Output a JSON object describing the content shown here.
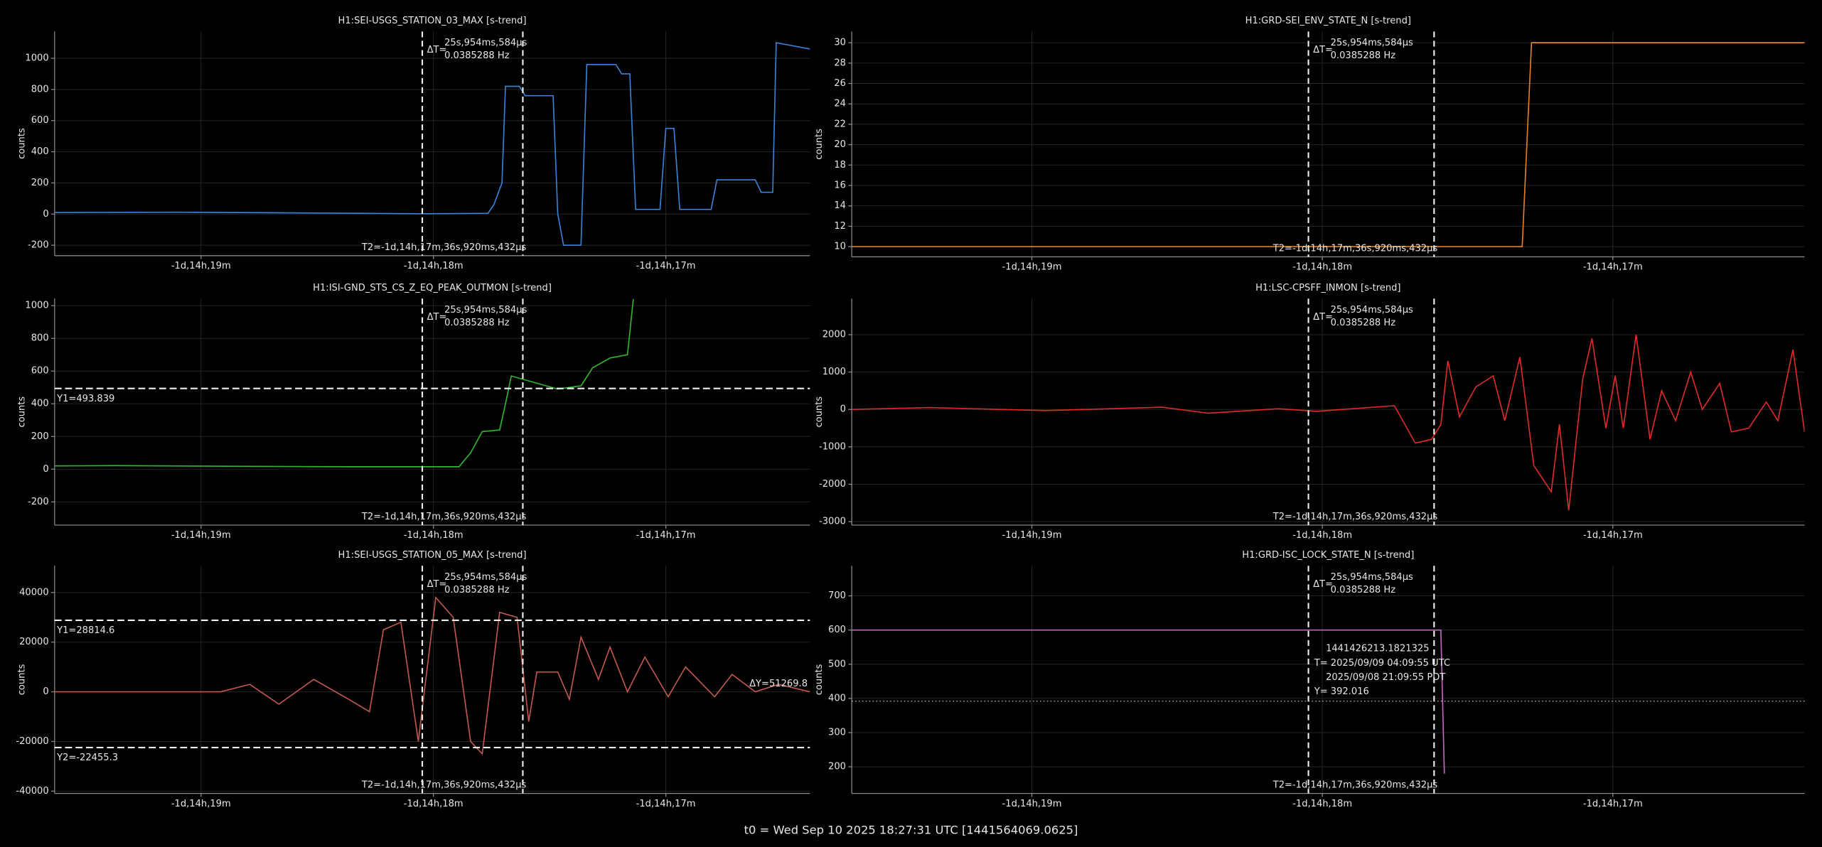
{
  "chart_data": [
    {
      "type": "line",
      "title": "H1:SEI-USGS_STATION_03_MAX [s-trend]",
      "ylabel": "counts",
      "color": "#3b82d6",
      "grid": true,
      "xlim": [
        -137977.8,
        -137782.8
      ],
      "xticks": [
        {
          "value": -137940,
          "label": "-1d,14h,19m"
        },
        {
          "value": -137880,
          "label": "-1d,14h,18m"
        },
        {
          "value": -137820,
          "label": "-1d,14h,17m"
        }
      ],
      "ylim": [
        -267,
        1172
      ],
      "yticks": [
        -200,
        0,
        200,
        400,
        600,
        800,
        1000
      ],
      "x": [
        -137977.8,
        -137946.9,
        -137916.9,
        -137883.0,
        -137865.9,
        -137864.4,
        -137862.3,
        -137861.4,
        -137857.8,
        -137856.3,
        -137849.1,
        -137847.9,
        -137846.4,
        -137841.9,
        -137840.4,
        -137832.9,
        -137831.4,
        -137829.3,
        -137827.8,
        -137821.5,
        -137820.0,
        -137817.9,
        -137816.4,
        -137808.3,
        -137806.8,
        -137796.9,
        -137795.4,
        -137792.4,
        -137791.5,
        -137782.8
      ],
      "values": [
        10,
        12,
        8,
        2,
        5,
        60,
        200,
        820,
        820,
        760,
        760,
        0,
        -200,
        -200,
        960,
        960,
        900,
        900,
        30,
        30,
        550,
        550,
        30,
        30,
        220,
        220,
        140,
        140,
        1100,
        1060
      ],
      "cursor": {
        "delta_label": "ΔT=",
        "delta": {
          "value": 25.954584,
          "label": "25s,954ms,584µs"
        },
        "freq": {
          "value": 0.0385288,
          "label": "0.0385288 Hz"
        },
        "t2": {
          "value": -137856.920432,
          "label": "T2=-1d,14h,17m,36s,920ms,432µs"
        }
      }
    },
    {
      "type": "line",
      "title": "H1:GRD-SEI_ENV_STATE_N [s-trend]",
      "ylabel": "counts",
      "color": "#e8801e",
      "grid": true,
      "xlim": [
        -137977.2,
        -137780.4
      ],
      "xticks": [
        {
          "value": -137940,
          "label": "-1d,14h,19m"
        },
        {
          "value": -137880,
          "label": "-1d,14h,18m"
        },
        {
          "value": -137820,
          "label": "-1d,14h,17m"
        }
      ],
      "ylim": [
        9,
        31.1
      ],
      "yticks": [
        10,
        12,
        14,
        16,
        18,
        20,
        22,
        24,
        26,
        28,
        30
      ],
      "x": [
        -137977.2,
        -137838.72,
        -137836.8,
        -137780.4
      ],
      "values": [
        10,
        10,
        30,
        30
      ],
      "cursor": {
        "delta_label": "ΔT=",
        "delta": {
          "value": 25.954584,
          "label": "25s,954ms,584µs"
        },
        "freq": {
          "value": 0.0385288,
          "label": "0.0385288 Hz"
        },
        "t2": {
          "value": -137856.920432,
          "label": "T2=-1d,14h,17m,36s,920ms,432µs"
        }
      }
    },
    {
      "type": "line",
      "title": "H1:ISI-GND_STS_CS_Z_EQ_PEAK_OUTMON [s-trend]",
      "ylabel": "counts",
      "color": "#2fb52f",
      "grid": true,
      "xlim": [
        -137977.8,
        -137782.8
      ],
      "xticks": [
        {
          "value": -137940,
          "label": "-1d,14h,19m"
        },
        {
          "value": -137880,
          "label": "-1d,14h,18m"
        },
        {
          "value": -137820,
          "label": "-1d,14h,17m"
        }
      ],
      "ylim": [
        -342,
        1043
      ],
      "yticks": [
        -200,
        0,
        200,
        400,
        600,
        800,
        1000
      ],
      "x": [
        -137977.8,
        -137961.9,
        -137931.9,
        -137901.9,
        -137883.0,
        -137873.4,
        -137870.4,
        -137867.4,
        -137862.9,
        -137861.4,
        -137859.9,
        -137856.9,
        -137847.9,
        -137841.9,
        -137838.9,
        -137834.4,
        -137829.9,
        -137828.4
      ],
      "values": [
        20,
        22,
        18,
        15,
        15,
        15,
        100,
        230,
        240,
        400,
        570,
        550,
        490,
        510,
        620,
        680,
        700,
        1040
      ],
      "hcursors": [
        {
          "value": 493.839,
          "label": "Y1=493.839"
        }
      ],
      "cursor": {
        "delta_label": "ΔT=",
        "delta": {
          "value": 25.954584,
          "label": "25s,954ms,584µs"
        },
        "freq": {
          "value": 0.0385288,
          "label": "0.0385288 Hz"
        },
        "t2": {
          "value": -137856.920432,
          "label": "T2=-1d,14h,17m,36s,920ms,432µs"
        }
      }
    },
    {
      "type": "line",
      "title": "H1:LSC-CPSFF_INMON [s-trend]",
      "ylabel": "counts",
      "color": "#dd2a2a",
      "grid": true,
      "xlim": [
        -137977.2,
        -137780.4
      ],
      "xticks": [
        {
          "value": -137940,
          "label": "-1d,14h,19m"
        },
        {
          "value": -137880,
          "label": "-1d,14h,18m"
        },
        {
          "value": -137820,
          "label": "-1d,14h,17m"
        }
      ],
      "ylim": [
        -3093,
        2963
      ],
      "yticks": [
        -3000,
        -2000,
        -1000,
        0,
        1000,
        2000
      ],
      "x": [
        -137977.2,
        -137961.12,
        -137937.12,
        -137913.12,
        -137903.52,
        -137889.12,
        -137881.2,
        -137865.12,
        -137860.8,
        -137857.44,
        -137855.52,
        -137854.08,
        -137851.68,
        -137848.32,
        -137844.72,
        -137842.32,
        -137839.2,
        -137836.32,
        -137832.72,
        -137831.04,
        -137829.12,
        -137826.24,
        -137824.32,
        -137821.44,
        -137819.52,
        -137817.84,
        -137815.2,
        -137812.32,
        -137809.92,
        -137807.04,
        -137803.92,
        -137801.52,
        -137797.92,
        -137795.52,
        -137791.92,
        -137788.32,
        -137785.92,
        -137782.8,
        -137780.4
      ],
      "values": [
        0,
        50,
        -30,
        60,
        -100,
        20,
        -50,
        100,
        -900,
        -800,
        -400,
        1300,
        -200,
        600,
        900,
        -300,
        1400,
        -1500,
        -2200,
        -400,
        -2700,
        800,
        1900,
        -500,
        900,
        -500,
        2000,
        -800,
        500,
        -300,
        1000,
        0,
        700,
        -600,
        -500,
        200,
        -300,
        1600,
        -600
      ],
      "cursor": {
        "delta_label": "ΔT=",
        "delta": {
          "value": 25.954584,
          "label": "25s,954ms,584µs"
        },
        "freq": {
          "value": 0.0385288,
          "label": "0.0385288 Hz"
        },
        "t2": {
          "value": -137856.920432,
          "label": "T2=-1d,14h,17m,36s,920ms,432µs"
        }
      }
    },
    {
      "type": "line",
      "title": "H1:SEI-USGS_STATION_05_MAX [s-trend]",
      "ylabel": "counts",
      "color": "#c0584f",
      "grid": true,
      "xlim": [
        -137977.8,
        -137782.8
      ],
      "xticks": [
        {
          "value": -137940,
          "label": "-1d,14h,19m"
        },
        {
          "value": -137880,
          "label": "-1d,14h,18m"
        },
        {
          "value": -137820,
          "label": "-1d,14h,17m"
        }
      ],
      "ylim": [
        -40936,
        50760
      ],
      "yticks": [
        -40000,
        -20000,
        0,
        20000,
        40000
      ],
      "x": [
        -137977.8,
        -137934.9,
        -137927.4,
        -137919.9,
        -137910.9,
        -137901.9,
        -137896.5,
        -137892.9,
        -137888.4,
        -137883.9,
        -137879.4,
        -137874.9,
        -137870.4,
        -137867.4,
        -137862.9,
        -137858.4,
        -137855.4,
        -137853.3,
        -137847.9,
        -137844.9,
        -137841.9,
        -137837.4,
        -137834.4,
        -137829.9,
        -137825.4,
        -137819.4,
        -137814.9,
        -137807.4,
        -137802.9,
        -137796.9,
        -137790.9,
        -137782.8
      ],
      "values": [
        0,
        0,
        3000,
        -5000,
        5000,
        -3000,
        -8000,
        25000,
        28000,
        -20000,
        38000,
        30000,
        -20000,
        -25000,
        32000,
        30000,
        -12000,
        8000,
        8000,
        -3000,
        22000,
        5000,
        18000,
        0,
        14000,
        -2000,
        10000,
        -2000,
        7000,
        0,
        3000,
        0
      ],
      "hcursors": [
        {
          "value": 28814.6,
          "label": "Y1=28814.6"
        },
        {
          "value": -22455.3,
          "label": "Y2=-22455.3"
        }
      ],
      "dy": {
        "value": 51269.8,
        "label": "ΔY=51269.8"
      },
      "cursor": {
        "delta_label": "ΔT=",
        "delta": {
          "value": 25.954584,
          "label": "25s,954ms,584µs"
        },
        "freq": {
          "value": 0.0385288,
          "label": "0.0385288 Hz"
        },
        "t2": {
          "value": -137856.920432,
          "label": "T2=-1d,14h,17m,36s,920ms,432µs"
        }
      }
    },
    {
      "type": "line",
      "title": "H1:GRD-ISC_LOCK_STATE_N [s-trend]",
      "ylabel": "counts",
      "color": "#c766c7",
      "grid": true,
      "xlim": [
        -137977.2,
        -137780.4
      ],
      "xticks": [
        {
          "value": -137940,
          "label": "-1d,14h,19m"
        },
        {
          "value": -137880,
          "label": "-1d,14h,18m"
        },
        {
          "value": -137820,
          "label": "-1d,14h,17m"
        }
      ],
      "ylim": [
        122,
        788
      ],
      "yticks": [
        200,
        300,
        400,
        500,
        600,
        700
      ],
      "x": [
        -137977.2,
        -137855.52,
        -137854.8
      ],
      "values": [
        600,
        600,
        180
      ],
      "tooltip": {
        "lines": [
          "1441426213.1821325",
          "T= 2025/09/09 04:09:55 UTC",
          "2025/09/08 21:09:55 PDT"
        ],
        "y": {
          "value": 392.016,
          "label": "Y= 392.016"
        }
      },
      "cursor": {
        "delta_label": "ΔT=",
        "delta": {
          "value": 25.954584,
          "label": "25s,954ms,584µs"
        },
        "freq": {
          "value": 0.0385288,
          "label": "0.0385288 Hz"
        },
        "t2": {
          "value": -137856.920432,
          "label": "T2=-1d,14h,17m,36s,920ms,432µs"
        }
      }
    }
  ],
  "footer": "t0 = Wed Sep 10 2025 18:27:31 UTC [1441564069.0625]"
}
